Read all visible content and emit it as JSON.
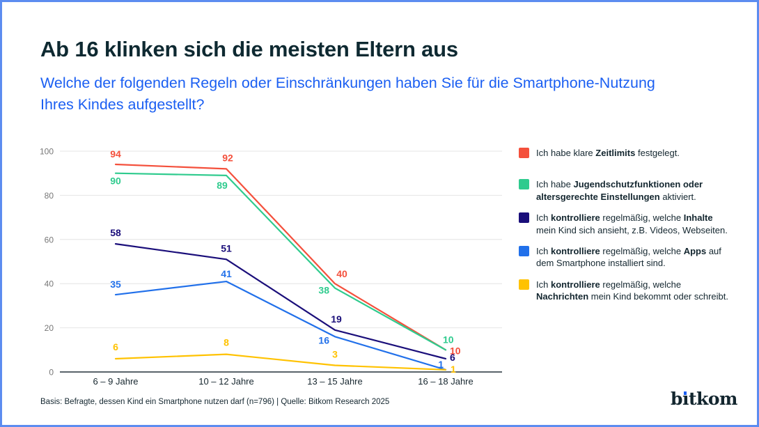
{
  "frame": {
    "border_color": "#5c8cf0"
  },
  "colors": {
    "title_dark": "#0e2931",
    "subtitle_blue": "#1b5ff2",
    "text": "#13262f",
    "grid_gray": "#e4e4e4",
    "axis_dark": "#223139"
  },
  "header": {
    "title": "Ab 16 klinken sich die meisten Eltern aus",
    "subtitle": "Welche der folgenden Regeln oder Einschränkungen haben Sie für die Smartphone-Nutzung Ihres Kindes aufgestellt?"
  },
  "chart_data": {
    "type": "line",
    "title": "Ab 16 klinken sich die meisten Eltern aus",
    "categories": [
      "6 – 9 Jahre",
      "10 – 12 Jahre",
      "13 – 15 Jahre",
      "16 – 18 Jahre"
    ],
    "series": [
      {
        "key": "zeitlimits",
        "color": "#f4503c",
        "values": [
          94,
          92,
          40,
          10
        ],
        "legend": [
          [
            "Ich habe klare ",
            0
          ],
          [
            "Zeitlimits",
            1
          ],
          [
            " festgelegt.",
            0
          ]
        ]
      },
      {
        "key": "jugendschutz",
        "color": "#2fcb8e",
        "values": [
          90,
          89,
          38,
          10
        ],
        "legend": [
          [
            "Ich habe ",
            0
          ],
          [
            "Jugendschutzfunktionen oder altersgerechte Einstellungen",
            1
          ],
          [
            " aktiviert.",
            0
          ]
        ]
      },
      {
        "key": "inhalte",
        "color": "#1a0e7a",
        "values": [
          58,
          51,
          19,
          6
        ],
        "legend": [
          [
            "Ich ",
            0
          ],
          [
            "kontrolliere",
            1
          ],
          [
            " regelmäßig, welche ",
            0
          ],
          [
            "Inhalte",
            1
          ],
          [
            " mein Kind sich ansieht, z.B. Videos, Webseiten.",
            0
          ]
        ]
      },
      {
        "key": "apps",
        "color": "#2170ea",
        "values": [
          35,
          41,
          16,
          1
        ],
        "legend": [
          [
            "Ich ",
            0
          ],
          [
            "kontrolliere",
            1
          ],
          [
            " regelmäßig, welche ",
            0
          ],
          [
            "Apps",
            1
          ],
          [
            " auf dem Smartphone installiert sind.",
            0
          ]
        ]
      },
      {
        "key": "nachrichten",
        "color": "#ffc200",
        "values": [
          6,
          8,
          3,
          1
        ],
        "legend": [
          [
            "Ich ",
            0
          ],
          [
            "kontrolliere",
            1
          ],
          [
            " regelmäßig, welche ",
            0
          ],
          [
            "Nachrichten",
            1
          ],
          [
            " mein Kind bekommt oder schreibt.",
            0
          ]
        ]
      }
    ],
    "ylim": [
      0,
      100
    ],
    "yticks": [
      0,
      20,
      40,
      60,
      80,
      100
    ],
    "grid": true,
    "legend_position": "right"
  },
  "footer": {
    "source": "Basis: Befragte, dessen Kind ein Smartphone nutzen darf (n=796) | Quelle: Bitkom Research 2025",
    "logo_text": "bitkom"
  }
}
